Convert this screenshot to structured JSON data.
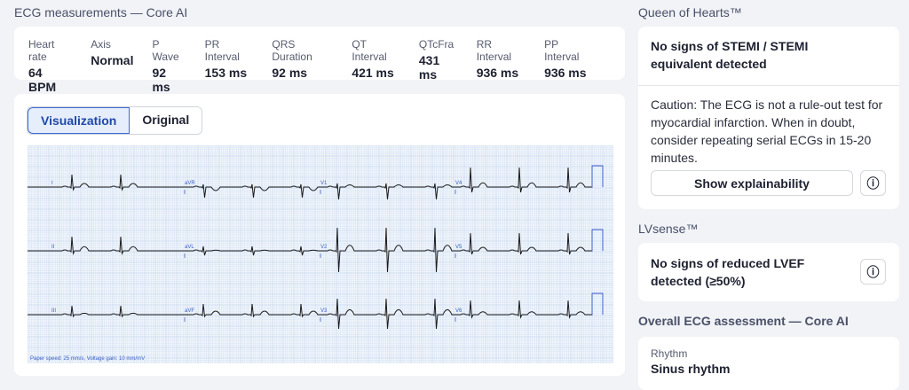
{
  "measurements": {
    "title": "ECG measurements — Core AI",
    "items": [
      {
        "label": "Heart rate",
        "value": "64 BPM"
      },
      {
        "label": "Axis",
        "value": "Normal"
      },
      {
        "label": "P Wave",
        "value": "92 ms"
      },
      {
        "label": "PR Interval",
        "value": "153 ms"
      },
      {
        "label": "QRS Duration",
        "value": "92 ms"
      },
      {
        "label": "QT Interval",
        "value": "421 ms"
      },
      {
        "label": "QTcFra",
        "value": "431 ms"
      },
      {
        "label": "RR Interval",
        "value": "936 ms"
      },
      {
        "label": "PP Interval",
        "value": "936 ms"
      }
    ]
  },
  "viz": {
    "tabs": [
      "Visualization",
      "Original"
    ],
    "active": "Visualization",
    "leads": [
      [
        "I",
        "aVR",
        "V1",
        "V4"
      ],
      [
        "II",
        "aVL",
        "V2",
        "V5"
      ],
      [
        "III",
        "aVF",
        "V3",
        "V6"
      ]
    ],
    "footer": "Paper speed: 25 mm/s, Voltage gain: 10 mm/mV"
  },
  "qoh": {
    "title": "Queen of Hearts™",
    "result": "No signs of STEMI / STEMI equivalent detected",
    "caution": "Caution: The ECG is not a rule-out test for myocardial infarction. When in doubt, consider repeating serial ECGs in 15-20 minutes.",
    "button": "Show explainability",
    "icon": "info-sparkle-icon"
  },
  "lv": {
    "title": "LVsense™",
    "result": "No signs of reduced LVEF detected (≥50%)",
    "icon": "info-sparkle-icon"
  },
  "overall": {
    "title": "Overall ECG assessment — Core AI",
    "rhythm_label": "Rhythm",
    "rhythm_value": "Sinus rhythm"
  },
  "colors": {
    "accent": "#1f49a8",
    "grid_minor": "#d6e3f3",
    "grid_major": "#b3c8e6",
    "trace": "#1a1a1a",
    "label": "#3a5fc4"
  }
}
